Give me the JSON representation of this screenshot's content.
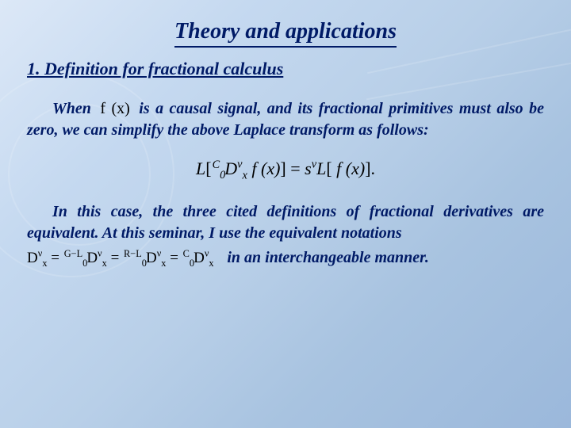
{
  "colors": {
    "text_primary": "#001a66",
    "math_color": "#000000",
    "bg_gradient_start": "#dce8f7",
    "bg_gradient_end": "#9bb8db"
  },
  "typography": {
    "family": "Times New Roman",
    "title_size_pt": 21,
    "heading_size_pt": 17,
    "body_size_pt": 15,
    "equation_size_pt": 17,
    "style": "italic",
    "weight": "bold"
  },
  "title": "Theory and applications",
  "section_heading": "1.  Definition for fractional calculus",
  "para1": {
    "lead": "When",
    "math_fx": "f (x)",
    "rest": " is a causal signal, and its fractional primitives must also be zero, we can simplify the above Laplace transform as follows:"
  },
  "equation": {
    "lhs_L": "L",
    "lhs_open": "[",
    "presup_C": "C",
    "presub_0": "0",
    "D": "D",
    "sup_nu": "ν",
    "sub_x": "x",
    "fx": " f (x)",
    "lhs_close": "]",
    "eq": " = ",
    "s": "s",
    "rhs_L": "L",
    "rhs_open": "[",
    "rhs_fx": " f (x)",
    "rhs_close": "]",
    "period": "."
  },
  "para2": {
    "text": "In this case, the three cited definitions of fractional derivatives are equivalent. At this seminar, I use the equivalent notations",
    "tail": " in an interchangeable manner."
  },
  "notations": {
    "D1_pre": "",
    "D": "D",
    "nu": "ν",
    "x": "x",
    "eq": " = ",
    "GL_sup": "G−L",
    "zero": "0",
    "RL_sup": "R−L",
    "C_sup": "C"
  }
}
